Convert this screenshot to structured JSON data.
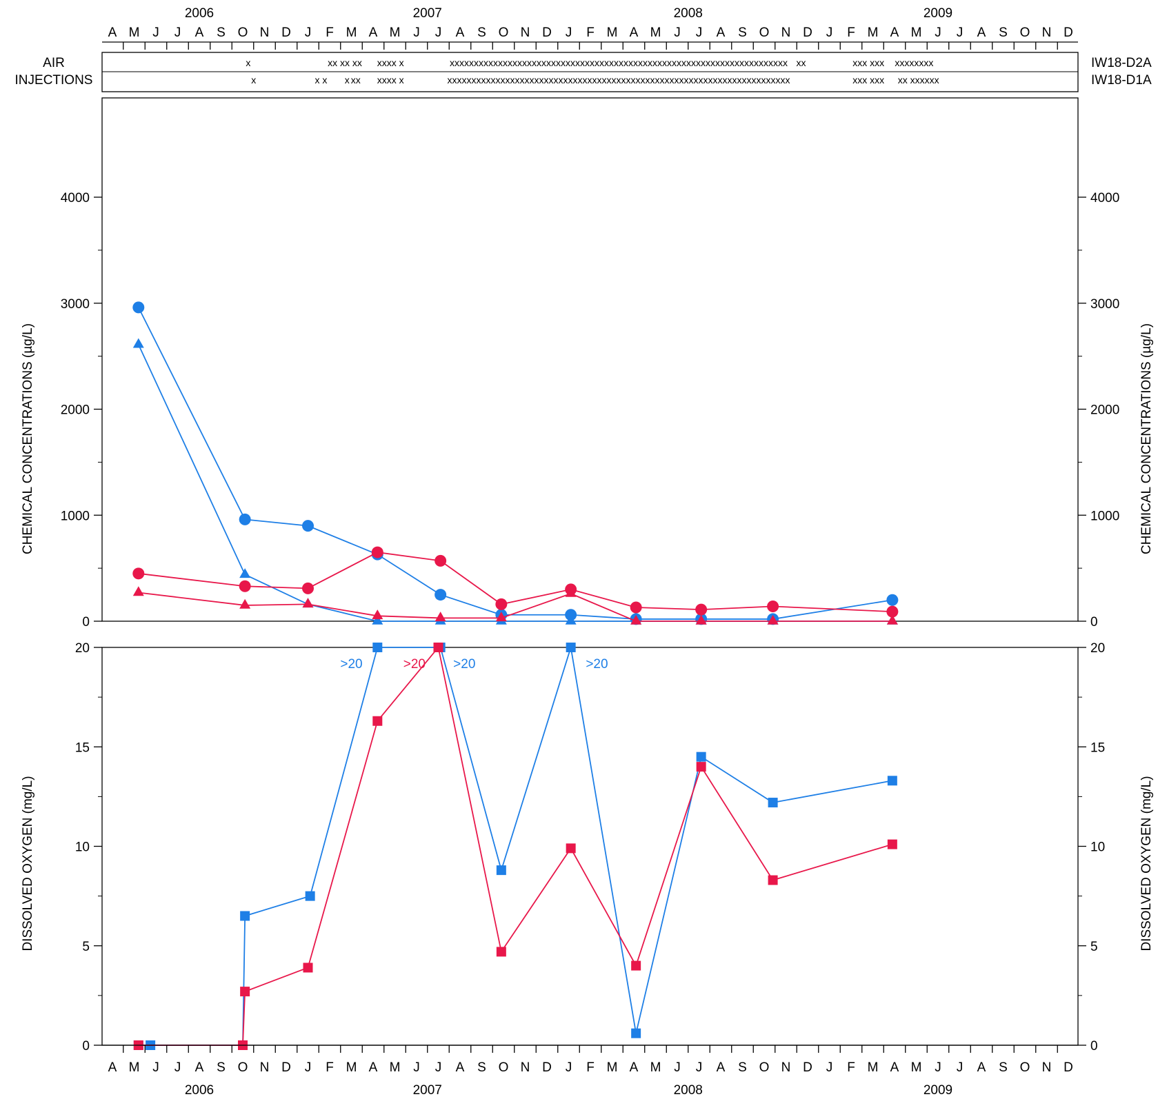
{
  "colors": {
    "blue": "#1e7fe6",
    "red": "#e8174a",
    "axis": "#000000"
  },
  "months": [
    "A",
    "M",
    "J",
    "J",
    "A",
    "S",
    "O",
    "N",
    "D",
    "J",
    "F",
    "M",
    "A",
    "M",
    "J",
    "J",
    "A",
    "S",
    "O",
    "N",
    "D",
    "J",
    "F",
    "M",
    "A",
    "M",
    "J",
    "J",
    "A",
    "S",
    "O",
    "N",
    "D",
    "J",
    "F",
    "M",
    "A",
    "M",
    "J",
    "J",
    "A",
    "S",
    "O",
    "N",
    "D"
  ],
  "years": [
    {
      "label": "2006",
      "month_index": 4.0
    },
    {
      "label": "2007",
      "month_index": 14.5
    },
    {
      "label": "2008",
      "month_index": 26.5
    },
    {
      "label": "2009",
      "month_index": 38.0
    }
  ],
  "air_injections": {
    "label_line1": "AIR",
    "label_line2": "INJECTIONS",
    "rows": [
      {
        "well": "IW18-D2A",
        "marks": [
          {
            "text": "x",
            "month_index": 6.25
          },
          {
            "text": "xx xx xx",
            "month_index": 10.7
          },
          {
            "text": "xxxx x",
            "month_index": 12.8
          },
          {
            "text": "xxxxxxxxxxxxxxxxxxxxxxxxxxxxxxxxxxxxxxxxxxxxxxxxxxxxxxxxxxxxxxxxxxxxxx",
            "month_index": 23.3
          },
          {
            "text": "xx",
            "month_index": 31.7
          },
          {
            "text": "xxx xxx",
            "month_index": 34.8
          },
          {
            "text": "xxxxxxxx",
            "month_index": 36.9
          }
        ]
      },
      {
        "well": "IW18-D1A",
        "marks": [
          {
            "text": "x",
            "month_index": 6.5
          },
          {
            "text": "x x",
            "month_index": 9.6
          },
          {
            "text": "x",
            "month_index": 10.8
          },
          {
            "text": "xx",
            "month_index": 11.2
          },
          {
            "text": "xxxx x",
            "month_index": 12.8
          },
          {
            "text": "xxxxxxxxxxxxxxxxxxxxxxxxxxxxxxxxxxxxxxxxxxxxxxxxxxxxxxxxxxxxxxxxxxxxxxx",
            "month_index": 23.3
          },
          {
            "text": "xxx xxx",
            "month_index": 34.8
          },
          {
            "text": "xx xxxxxx",
            "month_index": 37.1
          }
        ]
      }
    ]
  },
  "chart_data": [
    {
      "type": "line",
      "xlabel": "",
      "ylabel": "CHEMICAL CONCENTRATIONS (µg/L)",
      "x_unit": "month_index (0 = April 2006)",
      "ylim": [
        0,
        5000
      ],
      "yticks": [
        0,
        1000,
        2000,
        3000,
        4000
      ],
      "grid": false,
      "series": [
        {
          "color": "blue",
          "marker": "circle",
          "x": [
            1.2,
            6.1,
            9.0,
            12.2,
            15.1,
            17.9,
            21.1,
            24.1,
            27.1,
            30.4,
            35.9
          ],
          "y": [
            2960,
            960,
            900,
            630,
            250,
            60,
            60,
            20,
            20,
            20,
            200
          ]
        },
        {
          "color": "blue",
          "marker": "triangle",
          "x": [
            1.2,
            6.1,
            9.0,
            12.2,
            15.1,
            17.9,
            21.1,
            24.1,
            27.1,
            30.4,
            35.9
          ],
          "y": [
            2610,
            440,
            160,
            0,
            0,
            0,
            0,
            0,
            0,
            0,
            0
          ]
        },
        {
          "color": "red",
          "marker": "circle",
          "x": [
            1.2,
            6.1,
            9.0,
            12.2,
            15.1,
            17.9,
            21.1,
            24.1,
            27.1,
            30.4,
            35.9
          ],
          "y": [
            450,
            330,
            310,
            650,
            570,
            160,
            300,
            130,
            110,
            140,
            90
          ]
        },
        {
          "color": "red",
          "marker": "triangle",
          "x": [
            1.2,
            6.1,
            9.0,
            12.2,
            15.1,
            17.9,
            21.1,
            24.1,
            27.1,
            30.4,
            35.9
          ],
          "y": [
            270,
            150,
            160,
            50,
            30,
            30,
            260,
            0,
            0,
            0,
            0
          ]
        }
      ]
    },
    {
      "type": "line",
      "xlabel": "",
      "ylabel": "DISSOLVED OXYGEN (mg/L)",
      "x_unit": "month_index (0 = April 2006)",
      "ylim": [
        0,
        20
      ],
      "yticks": [
        0,
        5,
        10,
        15,
        20
      ],
      "grid": false,
      "series": [
        {
          "color": "blue",
          "marker": "square",
          "x": [
            1.2,
            1.75,
            6.0,
            6.1,
            9.1,
            12.2,
            15.1,
            17.9,
            21.1,
            24.1,
            27.1,
            30.4,
            35.9
          ],
          "y": [
            0,
            0,
            0,
            6.5,
            7.5,
            20,
            20,
            8.8,
            20,
            0.6,
            14.5,
            12.2,
            13.3
          ]
        },
        {
          "color": "red",
          "marker": "square",
          "x": [
            1.2,
            6.0,
            6.1,
            9.0,
            12.2,
            15.0,
            17.9,
            21.1,
            24.1,
            27.1,
            30.4,
            35.9
          ],
          "y": [
            0,
            0,
            2.7,
            3.9,
            16.3,
            20,
            4.7,
            9.9,
            4.0,
            14.0,
            8.3,
            10.1
          ]
        }
      ],
      "annotations": [
        {
          "text": ">20",
          "color": "blue",
          "x": 11.0,
          "y": 19.0
        },
        {
          "text": ">20",
          "color": "red",
          "x": 13.9,
          "y": 19.0
        },
        {
          "text": ">20",
          "color": "blue",
          "x": 16.2,
          "y": 19.0
        },
        {
          "text": ">20",
          "color": "blue",
          "x": 22.3,
          "y": 19.0
        }
      ]
    }
  ]
}
